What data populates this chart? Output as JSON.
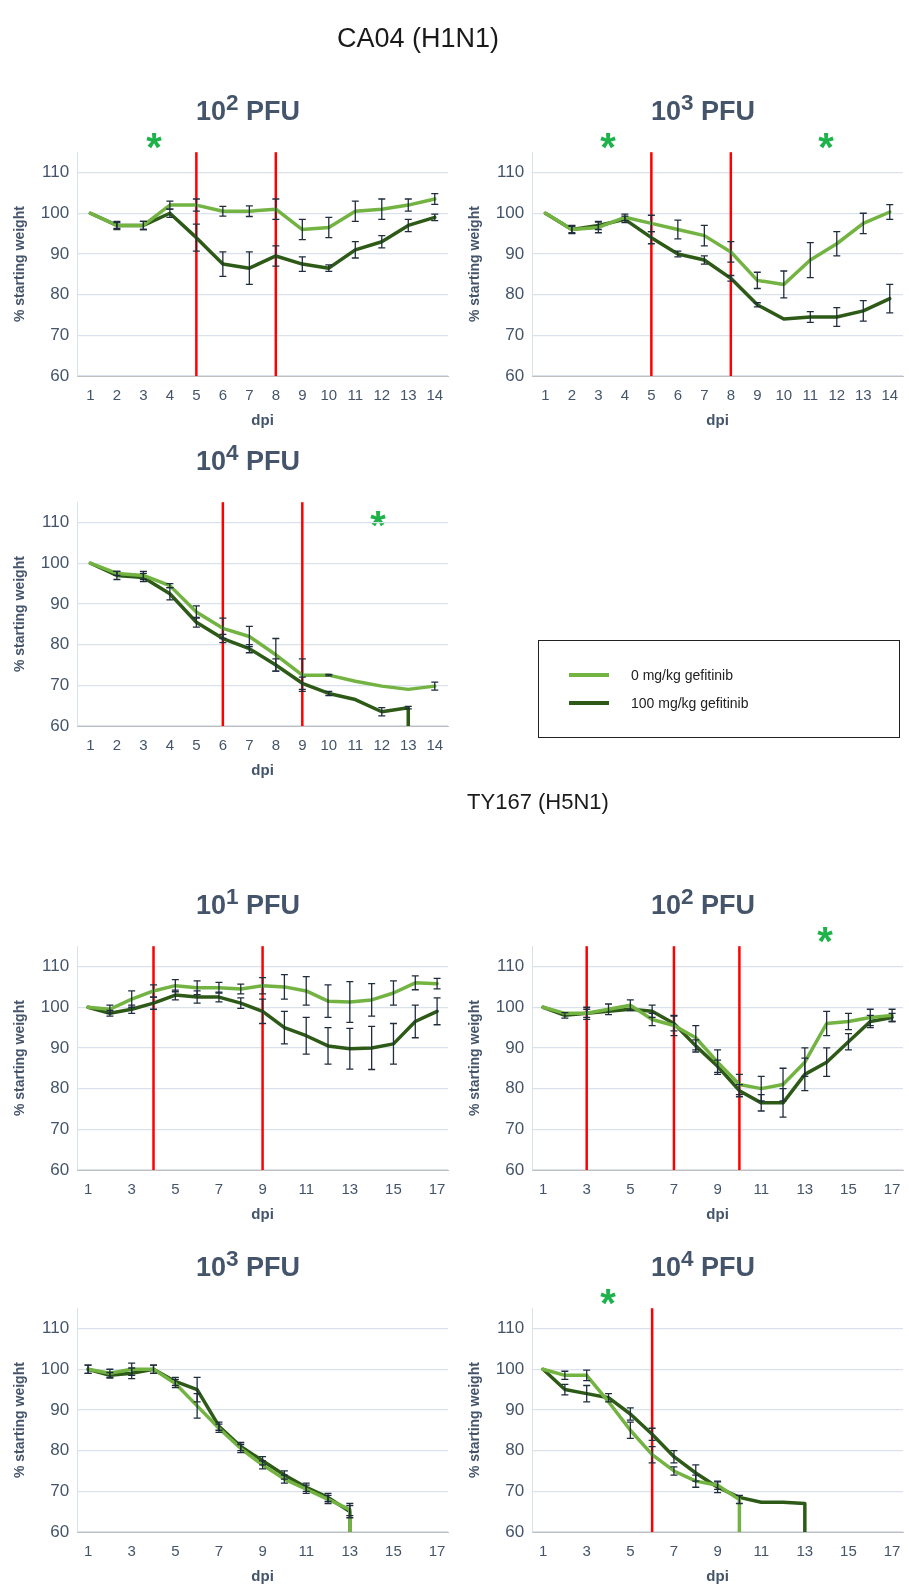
{
  "chart_data": [
    {
      "type": "line",
      "title": "10$^{2}$ PFU",
      "xlabel": "dpi",
      "ylabel": "% starting weight",
      "annotations": [
        "CA04 (H1N1)",
        "*"
      ],
      "x": [
        1,
        2,
        3,
        4,
        5,
        6,
        7,
        8,
        9,
        10,
        11,
        12,
        13,
        14
      ],
      "xlim": [
        0.5,
        14.5
      ],
      "xticks": [
        1,
        2,
        3,
        4,
        5,
        6,
        7,
        8,
        9,
        10,
        11,
        12,
        13,
        14
      ],
      "ylim": [
        60,
        115
      ],
      "yticks": [
        60,
        70,
        80,
        90,
        100,
        110
      ],
      "grid": "y",
      "ref_lines": [
        {
          "axis": "x",
          "value": 5,
          "color": "#ff0000"
        },
        {
          "axis": "x",
          "value": 8,
          "color": "#ff0000"
        }
      ],
      "series": [
        {
          "color": "#72b342",
          "values": [
            100,
            97,
            97,
            102,
            102,
            100.5,
            100.5,
            101,
            96,
            96.5,
            100.5,
            101,
            102,
            103.5
          ],
          "errors": [
            null,
            1,
            1,
            1,
            1.5,
            1.2,
            1.3,
            2.5,
            2.5,
            2.5,
            2.5,
            2.5,
            1.5,
            1.3
          ]
        },
        {
          "color": "#2e5a17",
          "values": [
            100,
            97,
            97,
            100,
            94,
            87.5,
            86.5,
            89.5,
            87.5,
            86.5,
            91,
            93,
            97,
            99
          ],
          "errors": [
            null,
            0.7,
            1,
            1,
            3.3,
            3,
            4,
            2.5,
            1.8,
            0.8,
            2,
            1.5,
            1.5,
            0.8
          ]
        }
      ]
    },
    {
      "type": "line",
      "title": "10$^{3}$ PFU",
      "xlabel": "dpi",
      "ylabel": "% starting weight",
      "annotations": [
        "*",
        "*"
      ],
      "x": [
        1,
        2,
        3,
        4,
        5,
        6,
        7,
        8,
        9,
        10,
        11,
        12,
        13,
        14
      ],
      "xlim": [
        0.5,
        14.5
      ],
      "xticks": [
        1,
        2,
        3,
        4,
        5,
        6,
        7,
        8,
        9,
        10,
        11,
        12,
        13,
        14
      ],
      "ylim": [
        60,
        115
      ],
      "yticks": [
        60,
        70,
        80,
        90,
        100,
        110
      ],
      "grid": "y",
      "ref_lines": [
        {
          "axis": "x",
          "value": 5,
          "color": "#ff0000"
        },
        {
          "axis": "x",
          "value": 8,
          "color": "#ff0000"
        }
      ],
      "series": [
        {
          "color": "#72b342",
          "values": [
            100,
            96,
            96.5,
            99,
            97.5,
            96,
            94.5,
            90.5,
            83.5,
            82.5,
            88.5,
            92.5,
            97.5,
            100.3
          ],
          "errors": [
            null,
            1,
            1.3,
            0.8,
            2,
            2.3,
            2.5,
            2.5,
            2,
            3.3,
            4.3,
            3,
            2.5,
            1.8
          ]
        },
        {
          "color": "#2e5a17",
          "values": [
            100,
            96,
            97,
            98.5,
            94,
            90,
            88.5,
            84,
            77.5,
            74,
            74.5,
            74.5,
            76,
            79
          ],
          "errors": [
            null,
            0.8,
            1,
            0.8,
            1.5,
            0.7,
            1,
            0.7,
            0.5,
            null,
            1.3,
            2.3,
            2.5,
            3.5
          ]
        }
      ]
    },
    {
      "type": "line",
      "title": "10$^{4}$ PFU",
      "xlabel": "dpi",
      "ylabel": "% starting weight",
      "annotations": [
        "*"
      ],
      "x": [
        1,
        2,
        3,
        4,
        5,
        6,
        7,
        8,
        9,
        10,
        11,
        12,
        13,
        14
      ],
      "xlim": [
        0.5,
        14.5
      ],
      "xticks": [
        1,
        2,
        3,
        4,
        5,
        6,
        7,
        8,
        9,
        10,
        11,
        12,
        13,
        14
      ],
      "ylim": [
        60,
        115
      ],
      "yticks": [
        60,
        70,
        80,
        90,
        100,
        110
      ],
      "grid": "y",
      "legend": "right",
      "ref_lines": [
        {
          "axis": "x",
          "value": 6,
          "color": "#ff0000"
        },
        {
          "axis": "x",
          "value": 9,
          "color": "#ff0000"
        }
      ],
      "series": [
        {
          "name": "0 mg/kg gefitinib",
          "color": "#72b342",
          "values": [
            100,
            97.5,
            97,
            94.5,
            88,
            84,
            82,
            77.5,
            72.5,
            72.5,
            71,
            69.8,
            69,
            69.8
          ],
          "errors": [
            null,
            0.5,
            1,
            0.5,
            1.5,
            2.5,
            2.5,
            4,
            4,
            0.2,
            null,
            null,
            null,
            1
          ]
        },
        {
          "name": "100 mg/kg gefitinib",
          "color": "#2e5a17",
          "x": [
            1,
            2,
            3,
            4,
            5,
            6,
            7,
            8,
            9,
            10,
            11,
            12,
            13,
            13
          ],
          "values": [
            100,
            97,
            96.5,
            92.5,
            85.5,
            81.5,
            79,
            75,
            70.5,
            68,
            66.5,
            63.5,
            64.5,
            60
          ],
          "errors": [
            null,
            1,
            1,
            1.5,
            1.2,
            1,
            1,
            1.5,
            1.5,
            0.5,
            null,
            1,
            0.3,
            null
          ]
        }
      ]
    },
    {
      "type": "line",
      "title": "10$^{1}$ PFU",
      "xlabel": "dpi",
      "ylabel": "% starting weight",
      "annotations": [
        "TY167 (H5N1)"
      ],
      "x": [
        1,
        2,
        3,
        4,
        5,
        6,
        7,
        8,
        9,
        10,
        11,
        12,
        13,
        14,
        15,
        16,
        17
      ],
      "xlim": [
        0.5,
        17.5
      ],
      "xticks": [
        1,
        3,
        5,
        7,
        9,
        11,
        13,
        15,
        17
      ],
      "ylim": [
        60,
        115
      ],
      "yticks": [
        60,
        70,
        80,
        90,
        100,
        110
      ],
      "grid": "y",
      "ref_lines": [
        {
          "axis": "x",
          "value": 4,
          "color": "#ff0000"
        },
        {
          "axis": "x",
          "value": 9,
          "color": "#ff0000"
        }
      ],
      "series": [
        {
          "color": "#72b342",
          "values": [
            100,
            99.5,
            102,
            104,
            105.3,
            104.8,
            104.8,
            104.5,
            105.3,
            105,
            104,
            101.5,
            101.3,
            101.8,
            103.5,
            106,
            105.8
          ],
          "errors": [
            null,
            1,
            2,
            1.5,
            1.5,
            1.7,
            1.3,
            1.2,
            2,
            3,
            3.5,
            4,
            5,
            4,
            3,
            1.7,
            1.3
          ]
        },
        {
          "color": "#2e5a17",
          "values": [
            100,
            98.5,
            99.5,
            101,
            103,
            102.5,
            102.5,
            101,
            99,
            95,
            93,
            90.5,
            89.8,
            90,
            91,
            96.5,
            99
          ],
          "errors": [
            null,
            0.7,
            1,
            1.5,
            1.2,
            1.5,
            1.2,
            1.3,
            3,
            4,
            4.5,
            4.5,
            5,
            5.3,
            5,
            4,
            3.3
          ]
        }
      ]
    },
    {
      "type": "line",
      "title": "10$^{2}$ PFU",
      "xlabel": "dpi",
      "ylabel": "% starting weight",
      "annotations": [
        "*"
      ],
      "x": [
        1,
        2,
        3,
        4,
        5,
        6,
        7,
        8,
        9,
        10,
        11,
        12,
        13,
        14,
        15,
        16,
        17
      ],
      "xlim": [
        0.5,
        17.5
      ],
      "xticks": [
        1,
        3,
        5,
        7,
        9,
        11,
        13,
        15,
        17
      ],
      "ylim": [
        60,
        115
      ],
      "yticks": [
        60,
        70,
        80,
        90,
        100,
        110
      ],
      "grid": "y",
      "ref_lines": [
        {
          "axis": "x",
          "value": 3,
          "color": "#ff0000"
        },
        {
          "axis": "x",
          "value": 7,
          "color": "#ff0000"
        },
        {
          "axis": "x",
          "value": 10,
          "color": "#ff0000"
        }
      ],
      "series": [
        {
          "color": "#72b342",
          "values": [
            100,
            98.5,
            98.5,
            99.5,
            100.5,
            97,
            95.5,
            92.5,
            86.5,
            81,
            80,
            81,
            86.5,
            96,
            96.5,
            97.5,
            98
          ],
          "errors": [
            null,
            null,
            1.5,
            1.3,
            1.3,
            1.5,
            2.5,
            3,
            3,
            2.5,
            3,
            4,
            3.5,
            3,
            2,
            2,
            1.5
          ]
        },
        {
          "color": "#2e5a17",
          "values": [
            100,
            98,
            98.5,
            99,
            99.5,
            99,
            96,
            90.5,
            85.5,
            79.5,
            76.5,
            76.5,
            83.5,
            86.5,
            91.5,
            96.5,
            97.5
          ],
          "errors": [
            null,
            0.7,
            1,
            null,
            null,
            1.5,
            1.8,
            1.5,
            1.5,
            1.5,
            2,
            3.5,
            4,
            3.5,
            2,
            1.5,
            1
          ]
        }
      ]
    },
    {
      "type": "line",
      "title": "10$^{3}$ PFU",
      "xlabel": "dpi",
      "ylabel": "% starting weight",
      "xlim": [
        0.5,
        17.5
      ],
      "xticks": [
        1,
        3,
        5,
        7,
        9,
        11,
        13,
        15,
        17
      ],
      "ylim": [
        60,
        115
      ],
      "yticks": [
        60,
        70,
        80,
        90,
        100,
        110
      ],
      "grid": "y",
      "series": [
        {
          "color": "#72b342",
          "x": [
            1,
            2,
            3,
            4,
            5,
            6,
            7,
            8,
            9,
            10,
            11,
            12,
            13,
            13
          ],
          "values": [
            100,
            99,
            100,
            100,
            96.5,
            91,
            85.5,
            80.5,
            76.5,
            73,
            70.5,
            68,
            65.5,
            60
          ],
          "errors": [
            1,
            1,
            1.5,
            1,
            1,
            3,
            1,
            1,
            1,
            1,
            1,
            1,
            1.5,
            null
          ]
        },
        {
          "color": "#2e5a17",
          "x": [
            1,
            2,
            3,
            4,
            5,
            6,
            7,
            8,
            9,
            10,
            11,
            12,
            13,
            13
          ],
          "values": [
            100,
            98.5,
            99,
            100,
            97,
            95,
            86,
            81,
            77.5,
            74,
            71,
            68.5,
            65,
            60
          ],
          "errors": [
            1,
            0.7,
            1.3,
            1,
            1,
            3,
            1,
            1,
            1,
            1,
            1,
            1,
            1.5,
            null
          ]
        }
      ]
    },
    {
      "type": "line",
      "title": "10$^{4}$ PFU",
      "xlabel": "dpi",
      "ylabel": "% starting weight",
      "annotations": [
        "*"
      ],
      "xlim": [
        0.5,
        17.5
      ],
      "xticks": [
        1,
        3,
        5,
        7,
        9,
        11,
        13,
        15,
        17
      ],
      "ylim": [
        60,
        115
      ],
      "yticks": [
        60,
        70,
        80,
        90,
        100,
        110
      ],
      "grid": "y",
      "ref_lines": [
        {
          "axis": "x",
          "value": 6,
          "color": "#ff0000"
        }
      ],
      "series": [
        {
          "color": "#72b342",
          "x": [
            1,
            2,
            3,
            4,
            5,
            6,
            7,
            8,
            9,
            10,
            10
          ],
          "values": [
            100,
            98.5,
            98.5,
            92,
            85,
            79,
            75,
            72.5,
            71.5,
            68,
            60
          ],
          "errors": [
            null,
            1,
            1.3,
            null,
            2,
            2,
            1,
            1.5,
            1,
            1,
            null
          ]
        },
        {
          "color": "#2e5a17",
          "x": [
            1,
            2,
            3,
            4,
            5,
            6,
            7,
            8,
            9,
            10,
            11,
            12,
            13,
            13
          ],
          "values": [
            100,
            95,
            94,
            93,
            89,
            84,
            78.5,
            74.5,
            71,
            68.5,
            67.3,
            67.3,
            67,
            60
          ],
          "errors": [
            null,
            1.3,
            2,
            1,
            1.5,
            1.5,
            1.5,
            2,
            1.3,
            null,
            null,
            null,
            null,
            null
          ]
        }
      ]
    }
  ]
}
